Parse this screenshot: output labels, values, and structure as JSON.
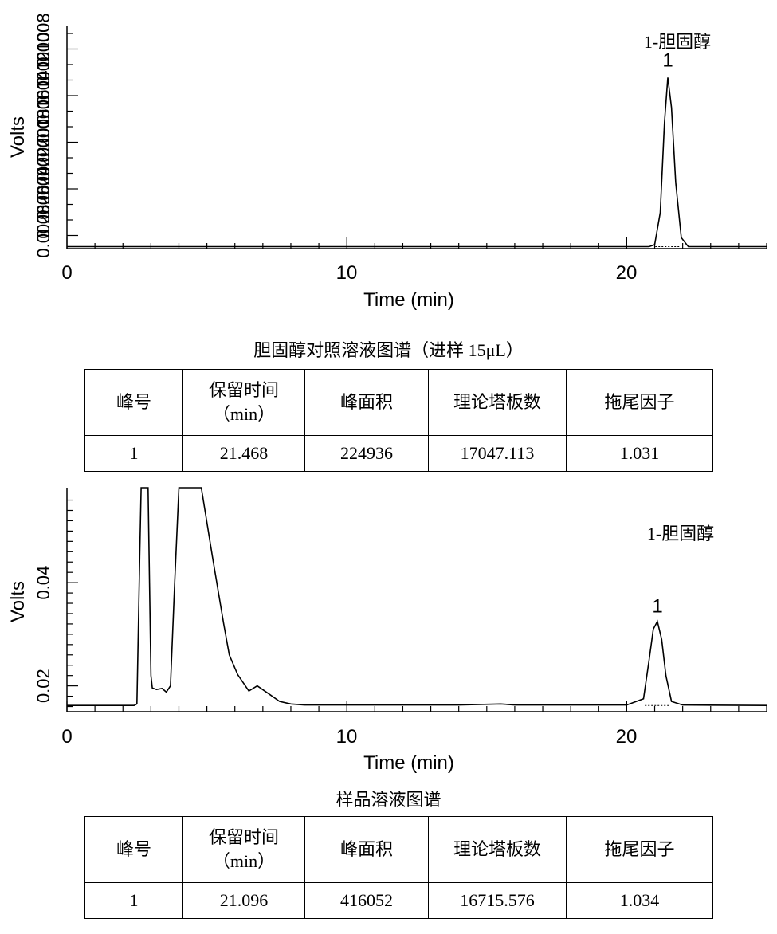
{
  "chart_data": [
    {
      "type": "line",
      "title": "胆固醇对照溶液图谱（进样 15μL）",
      "xlabel": "Time (min)",
      "ylabel": "Volts",
      "xlim": [
        0,
        25
      ],
      "ylim": [
        0.0064,
        0.0287
      ],
      "x_ticks": [
        "0",
        "10",
        "20"
      ],
      "y_tick_labels_overlapping": [
        "0.0028",
        "0.0026",
        "0.0024",
        "0.0022",
        "0.0020",
        "0.0018",
        "0.0016",
        "0.0014",
        "0.0012",
        "0.0010",
        "0.0008"
      ],
      "legend": "1-胆固醇",
      "peak_labels": [
        {
          "label": "1",
          "x": 21.47,
          "y": 0.0246
        }
      ],
      "series": [
        {
          "name": "chromatogram",
          "x": [
            0,
            5,
            10,
            15,
            20,
            20.8,
            21.0,
            21.2,
            21.35,
            21.468,
            21.6,
            21.75,
            21.95,
            22.2,
            25
          ],
          "y": [
            0.0066,
            0.0066,
            0.0066,
            0.0066,
            0.0066,
            0.0066,
            0.0068,
            0.01,
            0.019,
            0.0235,
            0.0205,
            0.013,
            0.0075,
            0.0066,
            0.0066
          ]
        }
      ]
    },
    {
      "type": "line",
      "title": "样品溶液图谱",
      "xlabel": "Time (min)",
      "ylabel": "Volts",
      "xlim": [
        0,
        25
      ],
      "ylim": [
        0.015,
        0.0584
      ],
      "y_ticks": [
        0.02,
        0.04
      ],
      "y_tick_labels": [
        "0.02",
        "0.04"
      ],
      "x_ticks": [
        "0",
        "10",
        "20"
      ],
      "legend": "1-胆固醇",
      "peak_labels": [
        {
          "label": "1",
          "x": 21.1,
          "y": 0.0342
        }
      ],
      "series": [
        {
          "name": "chromatogram",
          "x": [
            0,
            2.4,
            2.5,
            2.6,
            2.65,
            2.7,
            2.75,
            2.8,
            2.85,
            2.9,
            2.95,
            3.0,
            3.05,
            3.2,
            3.4,
            3.55,
            3.7,
            3.85,
            4.0,
            4.05,
            4.5,
            4.7,
            4.8,
            5.2,
            5.6,
            5.8,
            6.1,
            6.5,
            6.8,
            7.2,
            7.6,
            8.0,
            8.5,
            10,
            12,
            14,
            15.5,
            16,
            18,
            20,
            20.6,
            20.8,
            20.95,
            21.096,
            21.25,
            21.4,
            21.6,
            22,
            25
          ],
          "y": [
            0.0162,
            0.0162,
            0.0165,
            0.045,
            0.0584,
            0.0584,
            0.0584,
            0.0584,
            0.0584,
            0.0584,
            0.04,
            0.022,
            0.0196,
            0.0193,
            0.0195,
            0.0188,
            0.02,
            0.04,
            0.0584,
            0.0584,
            0.0584,
            0.0584,
            0.0584,
            0.045,
            0.032,
            0.026,
            0.0222,
            0.019,
            0.02,
            0.0185,
            0.017,
            0.0165,
            0.0163,
            0.0163,
            0.0163,
            0.0163,
            0.0165,
            0.0163,
            0.0163,
            0.0163,
            0.0175,
            0.025,
            0.031,
            0.0325,
            0.029,
            0.022,
            0.017,
            0.0163,
            0.0162
          ]
        }
      ]
    }
  ],
  "tables": [
    {
      "headers": [
        "峰号",
        "保留时间",
        "（min）",
        "峰面积",
        "理论塔板数",
        "拖尾因子"
      ],
      "row": [
        "1",
        "21.468",
        "224936",
        "17047.113",
        "1.031"
      ]
    },
    {
      "headers": [
        "峰号",
        "保留时间",
        "（min）",
        "峰面积",
        "理论塔板数",
        "拖尾因子"
      ],
      "row": [
        "1",
        "21.096",
        "416052",
        "16715.576",
        "1.034"
      ]
    }
  ]
}
